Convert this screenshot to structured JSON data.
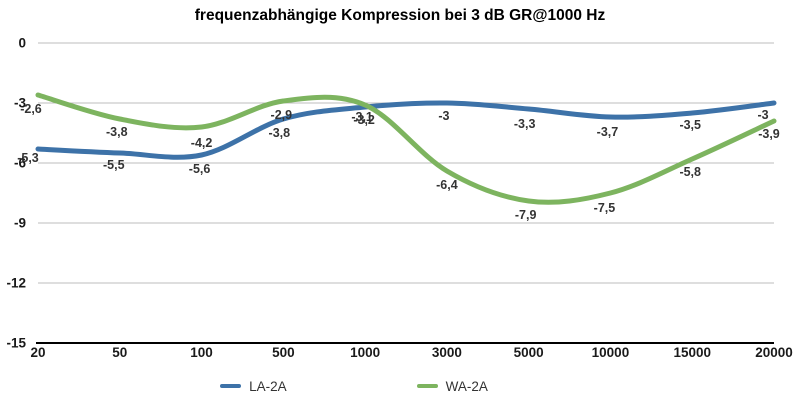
{
  "chart_data": {
    "type": "line",
    "title": "frequenzabhängige Kompression bei 3 dB GR@1000 Hz",
    "xlabel": "",
    "ylabel": "",
    "categories": [
      "20",
      "50",
      "100",
      "500",
      "1000",
      "3000",
      "5000",
      "10000",
      "15000",
      "20000"
    ],
    "series": [
      {
        "name": "LA-2A",
        "color": "#3d72a8",
        "values": [
          -5.3,
          -5.5,
          -5.6,
          -3.8,
          -3.2,
          -3,
          -3.3,
          -3.7,
          -3.5,
          -3
        ],
        "labels": [
          "-5,3",
          "-5,5",
          "-5,6",
          "-3,8",
          "-3,2",
          "-3",
          "-3,3",
          "-3,7",
          "-3,5",
          "-3"
        ]
      },
      {
        "name": "WA-2A",
        "color": "#7db45f",
        "values": [
          -2.6,
          -3.8,
          -4.2,
          -2.9,
          -3.1,
          -6.4,
          -7.9,
          -7.5,
          -5.8,
          -3.9
        ],
        "labels": [
          "-2,6",
          "-3,8",
          "-4,2",
          "-2,9",
          "-3,1",
          "-6,4",
          "-7,9",
          "-7,5",
          "-5,8",
          "-3,9"
        ]
      }
    ],
    "yticks": [
      0,
      -3,
      -6,
      -9,
      -12,
      -15
    ],
    "ylim": [
      -15,
      0
    ],
    "grid": true,
    "smooth": true,
    "legend_position": "bottom",
    "decimal_separator": "comma",
    "colors": {
      "grid": "#bdbdbd",
      "axis": "#000000",
      "tick_text": "#1a1a1a",
      "data_label_text": "#333333",
      "background": "#ffffff"
    }
  }
}
